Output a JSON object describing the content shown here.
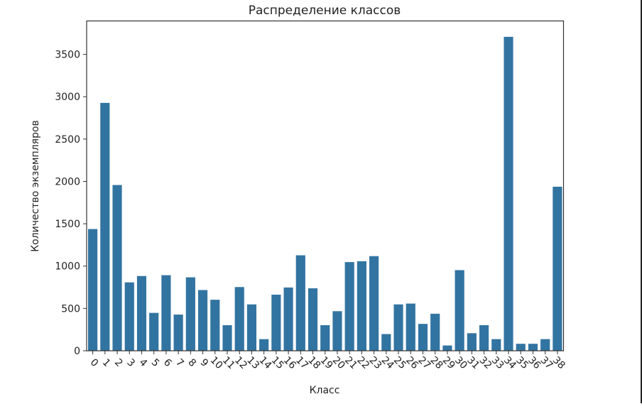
{
  "chart_data": {
    "type": "bar",
    "title": "Распределение классов",
    "xlabel": "Класс",
    "ylabel": "Количество экземпляров",
    "categories": [
      "0",
      "1",
      "2",
      "3",
      "4",
      "5",
      "6",
      "7",
      "8",
      "9",
      "10",
      "11",
      "12",
      "13",
      "14",
      "15",
      "16",
      "17",
      "18",
      "19",
      "20",
      "21",
      "22",
      "23",
      "24",
      "25",
      "26",
      "27",
      "28",
      "29",
      "30",
      "31",
      "32",
      "33",
      "34",
      "35",
      "36",
      "37",
      "38"
    ],
    "values": [
      1440,
      2930,
      1960,
      810,
      885,
      450,
      895,
      430,
      870,
      720,
      605,
      305,
      755,
      550,
      140,
      665,
      750,
      1130,
      740,
      305,
      470,
      1050,
      1060,
      1120,
      200,
      550,
      560,
      320,
      440,
      65,
      955,
      210,
      305,
      140,
      3710,
      85,
      85,
      140,
      1940
    ],
    "yticks": [
      0,
      500,
      1000,
      1500,
      2000,
      2500,
      3000,
      3500
    ],
    "ylim": [
      0,
      3895
    ],
    "xtick_rotation": 45,
    "grid": false,
    "legend": null,
    "bar_color": "#3274a1"
  }
}
